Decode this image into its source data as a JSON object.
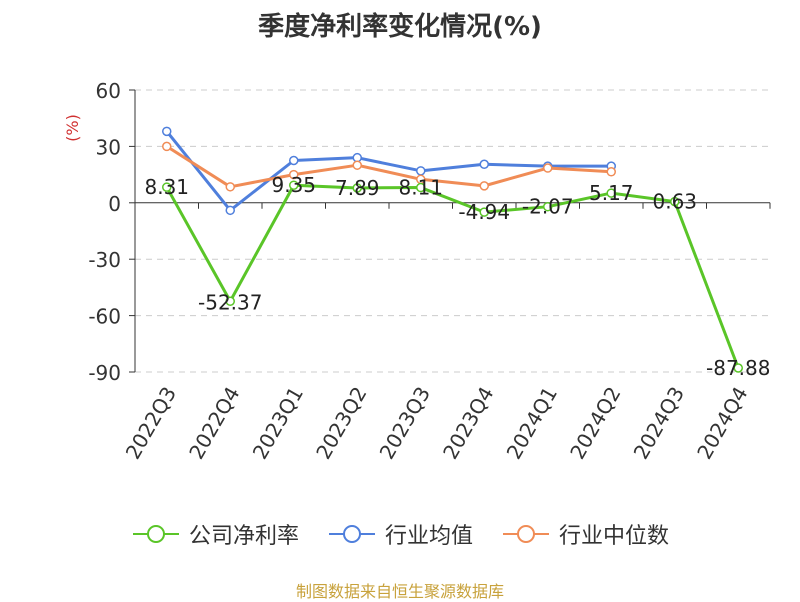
{
  "title": "季度净利率变化情况(%)",
  "source": "制图数据来自恒生聚源数据库",
  "chart_data": {
    "type": "line",
    "ylabel": "(%)",
    "ylim": [
      -90,
      60
    ],
    "yticks": [
      60,
      30,
      0,
      -30,
      -60,
      -90
    ],
    "categories": [
      "2022Q3",
      "2022Q4",
      "2023Q1",
      "2023Q2",
      "2023Q3",
      "2023Q4",
      "2024Q1",
      "2024Q2",
      "2024Q3",
      "2024Q4"
    ],
    "series": [
      {
        "name": "公司净利率",
        "color": "#5ac528",
        "values": [
          8.31,
          -52.37,
          9.35,
          7.89,
          8.11,
          -4.94,
          -2.07,
          5.17,
          0.63,
          -87.88
        ],
        "labels": [
          "8.31",
          "-52.37",
          "9.35",
          "7.89",
          "8.11",
          "-4.94",
          "-2.07",
          "5.17",
          "0.63",
          "-87.88"
        ]
      },
      {
        "name": "行业均值",
        "color": "#4f7fdc",
        "values": [
          38,
          -4,
          22.5,
          24,
          17,
          20.5,
          19.5,
          19.5,
          null,
          null
        ]
      },
      {
        "name": "行业中位数",
        "color": "#f08c56",
        "values": [
          30,
          8.5,
          15,
          20,
          12.5,
          9,
          18.5,
          16.5,
          null,
          null
        ]
      }
    ],
    "legend_position": "bottom",
    "grid": true
  }
}
